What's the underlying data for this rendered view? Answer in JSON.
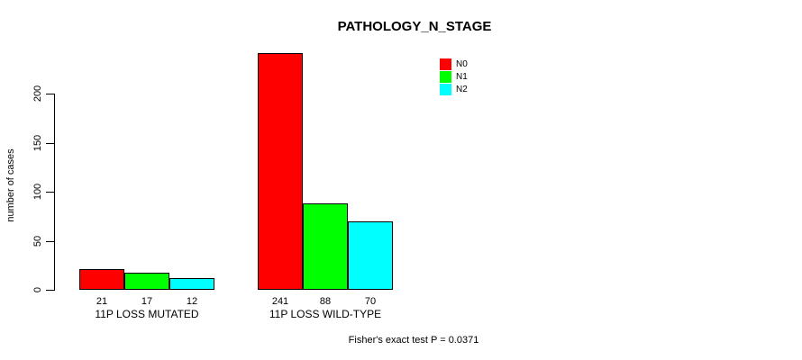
{
  "chart_data": {
    "type": "bar",
    "title": "PATHOLOGY_N_STAGE",
    "xlabel": "",
    "ylabel": "number of cases",
    "categories": [
      "11P LOSS MUTATED",
      "11P LOSS WILD-TYPE"
    ],
    "series": [
      {
        "name": "N0",
        "color": "#FF0000",
        "values": [
          21,
          241
        ]
      },
      {
        "name": "N1",
        "color": "#00FF00",
        "values": [
          17,
          88
        ]
      },
      {
        "name": "N2",
        "color": "#00FFFF",
        "values": [
          12,
          70
        ]
      }
    ],
    "y_ticks": [
      0,
      50,
      100,
      150,
      200
    ],
    "ylim": [
      0,
      200
    ],
    "grid": false,
    "legend_position": "top-right",
    "bar_border_color": "#000000",
    "annotation": "Fisher's exact test P = 0.0371"
  }
}
